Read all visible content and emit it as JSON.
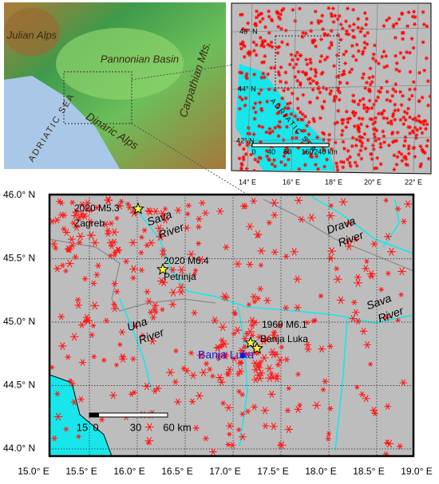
{
  "relief_inset": {
    "labels": [
      "Julian Alps",
      "Pannonian Basin",
      "Carpathian Mts.",
      "Dinaric Alps",
      "ADRIATIC SEA"
    ]
  },
  "seismicity_inset": {
    "lat_ticks": [
      {
        "value": 46,
        "label": "46° N"
      },
      {
        "value": 44,
        "label": "44° N"
      },
      {
        "value": 42,
        "label": "42° N"
      }
    ],
    "lon_ticks": [
      {
        "value": 14,
        "label": "14° E"
      },
      {
        "value": 16,
        "label": "16° E"
      },
      {
        "value": 18,
        "label": "18° E"
      },
      {
        "value": 20,
        "label": "20° E"
      },
      {
        "value": 22,
        "label": "22° E"
      }
    ],
    "sea_label": "ADRIATIC SEA",
    "scale_labels": [
      "0",
      "40",
      "80",
      "160",
      "240 km"
    ]
  },
  "main_map": {
    "lat_ticks": [
      {
        "value": 46.0,
        "label": "46.0° N"
      },
      {
        "value": 45.5,
        "label": "45.5° N"
      },
      {
        "value": 45.0,
        "label": "45.0° N"
      },
      {
        "value": 44.5,
        "label": "44.5° N"
      },
      {
        "value": 44.0,
        "label": "44.0° N"
      }
    ],
    "lon_ticks": [
      {
        "value": 15.0,
        "label": "15.0° E"
      },
      {
        "value": 15.5,
        "label": "15.5° E"
      },
      {
        "value": 16.0,
        "label": "16.0° E"
      },
      {
        "value": 16.5,
        "label": "16.5° E"
      },
      {
        "value": 17.0,
        "label": "17.0° E"
      },
      {
        "value": 17.5,
        "label": "17.5° E"
      },
      {
        "value": 18.0,
        "label": "18.0° E"
      },
      {
        "value": 18.5,
        "label": "18.5° E"
      },
      {
        "value": 19.0,
        "label": "19.0° E"
      }
    ],
    "events": [
      {
        "label": "2020 M5.3",
        "place": "Zagreb"
      },
      {
        "label": "2020 M6.4",
        "place": "Petrinja"
      },
      {
        "label": "1969 M6.1",
        "place": "Banja Luka"
      }
    ],
    "city": "Banja Luka",
    "rivers": [
      [
        "Sava",
        "River"
      ],
      [
        "Drava",
        "River"
      ],
      [
        "Una",
        "River"
      ],
      [
        "Sava",
        "River"
      ]
    ],
    "scale_labels": [
      "0",
      "15",
      "30",
      "60 km"
    ]
  }
}
